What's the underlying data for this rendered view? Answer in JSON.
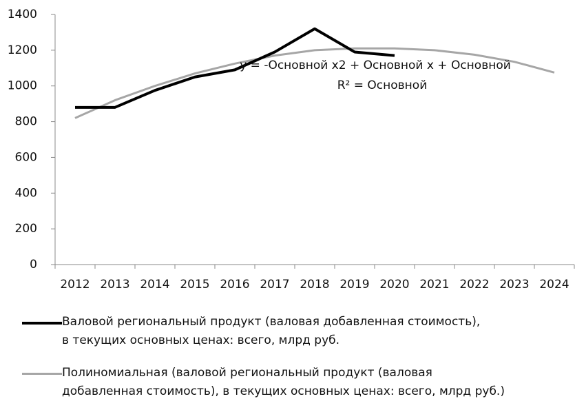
{
  "chart_data": {
    "type": "line",
    "categories": [
      "2012",
      "2013",
      "2014",
      "2015",
      "2016",
      "2017",
      "2018",
      "2019",
      "2020",
      "2021",
      "2022",
      "2023",
      "2024"
    ],
    "series": [
      {
        "name": "Валовой региональный продукт (валовая добавленная стоимость),\nв текущих основных ценах: всего, млрд руб.",
        "color": "#000000",
        "values": [
          880,
          880,
          975,
          1050,
          1090,
          1190,
          1320,
          1190,
          1170,
          null,
          null,
          null,
          null
        ]
      },
      {
        "name": "Полиномиальная (валовой региональный продукт (валовая\nдобавленная стоимость), в текущих основных ценах: всего, млрд руб.)",
        "color": "#a6a6a6",
        "values": [
          820,
          920,
          1000,
          1070,
          1125,
          1170,
          1200,
          1210,
          1210,
          1200,
          1175,
          1135,
          1075
        ]
      }
    ],
    "annotations": [
      "y = -Основной x2 + Основной x + Основной",
      "R² = Основной"
    ],
    "ylim": [
      0,
      1400
    ],
    "yticks": [
      0,
      200,
      400,
      600,
      800,
      1000,
      1200,
      1400
    ],
    "grid": false
  }
}
